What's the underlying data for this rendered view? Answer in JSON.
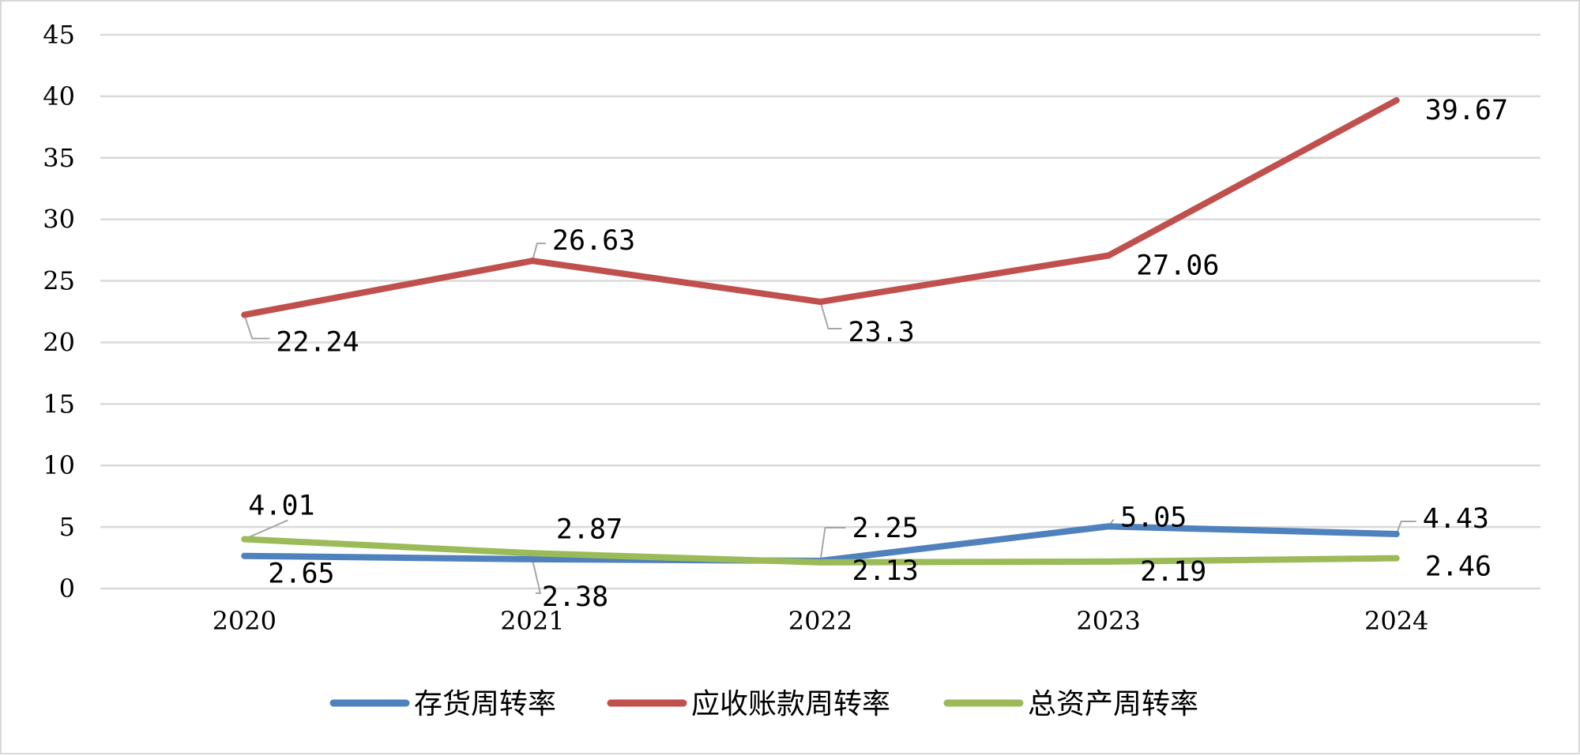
{
  "chart_data": {
    "type": "line",
    "title": "",
    "xlabel": "",
    "ylabel": "",
    "categories": [
      "2020",
      "2021",
      "2022",
      "2023",
      "2024"
    ],
    "ylim": [
      0,
      45
    ],
    "yticks": [
      0,
      5,
      10,
      15,
      20,
      25,
      30,
      35,
      40,
      45
    ],
    "grid": true,
    "legend_position": "bottom",
    "series": [
      {
        "name": "存货周转率",
        "color": "#4f81bd",
        "values": [
          2.65,
          2.38,
          2.25,
          5.05,
          4.43
        ],
        "labels": [
          "2.65",
          "2.38",
          "2.25",
          "5.05",
          "4.43"
        ]
      },
      {
        "name": "应收账款周转率",
        "color": "#c0504d",
        "values": [
          22.24,
          26.63,
          23.3,
          27.06,
          39.67
        ],
        "labels": [
          "22.24",
          "26.63",
          "23.3",
          "27.06",
          "39.67"
        ]
      },
      {
        "name": "总资产周转率",
        "color": "#9bbb59",
        "values": [
          4.01,
          2.87,
          2.13,
          2.19,
          2.46
        ],
        "labels": [
          "4.01",
          "2.87",
          "2.13",
          "2.19",
          "2.46"
        ]
      }
    ]
  }
}
